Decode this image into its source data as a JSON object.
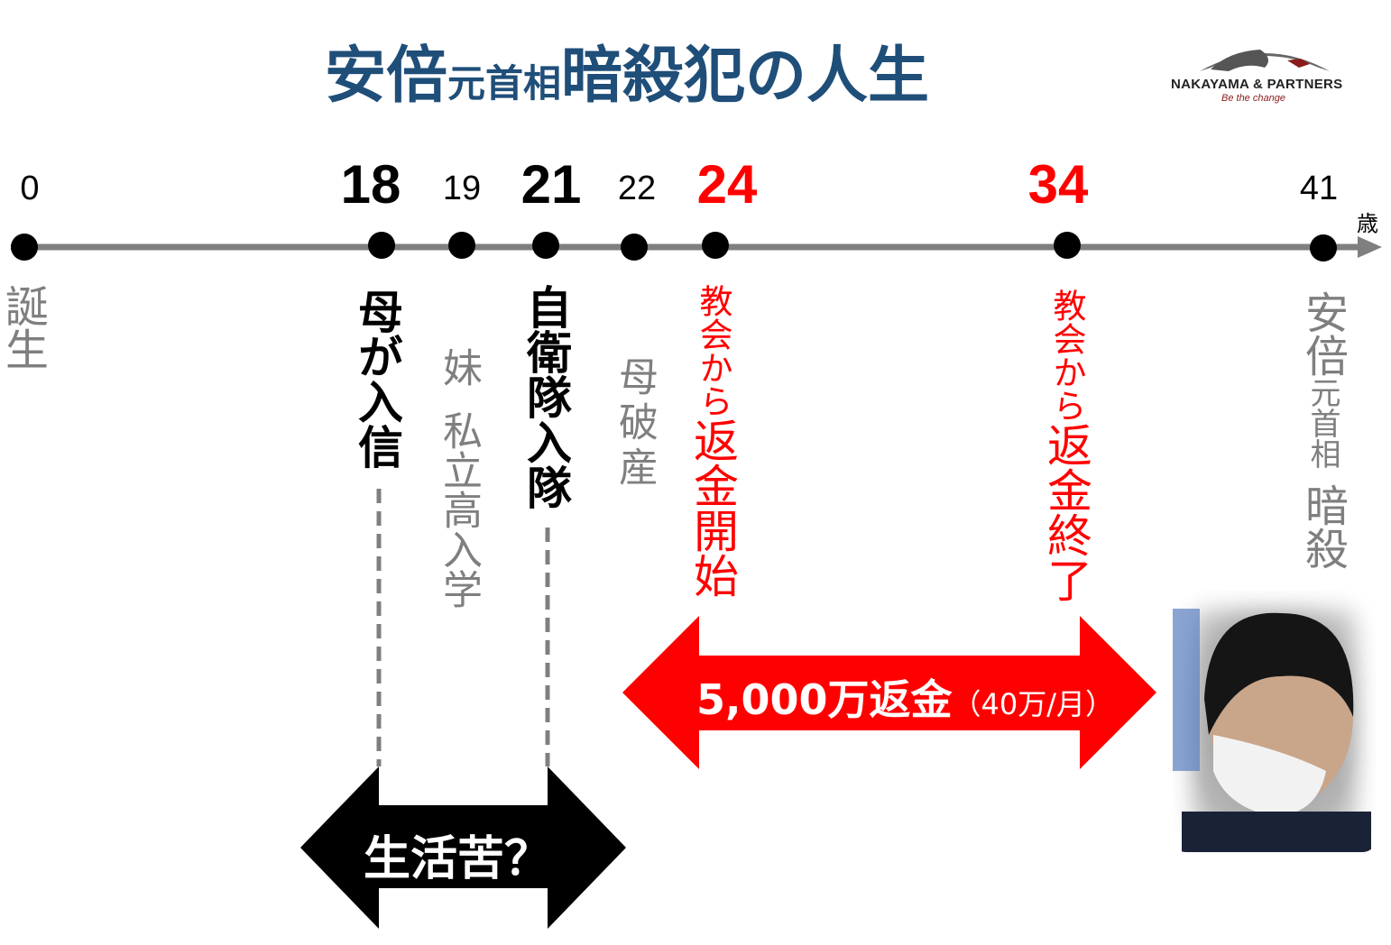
{
  "title": {
    "part1": "安倍",
    "part2": "元首相",
    "part3": "暗殺犯の人生"
  },
  "logo": {
    "name": "Nakayama & Partners",
    "tagline": "Be the change"
  },
  "timeline": {
    "unit": "歳",
    "ages": [
      "0",
      "18",
      "19",
      "21",
      "22",
      "24",
      "34",
      "41"
    ],
    "events": [
      {
        "age": "0",
        "label": "誕生"
      },
      {
        "age": "18",
        "label": "母が入信"
      },
      {
        "age": "19",
        "label_a": "妹",
        "label_b": "私立高入学"
      },
      {
        "age": "21",
        "label": "自衛隊入隊"
      },
      {
        "age": "22",
        "label": "母破産"
      },
      {
        "age": "24",
        "label_a": "教会から",
        "label_b": "返金開始"
      },
      {
        "age": "34",
        "label_a": "教会から",
        "label_b": "返金終了"
      },
      {
        "age": "41",
        "label_a": "安倍",
        "label_b": "元首相",
        "label_c": "暗殺"
      }
    ]
  },
  "arrows": {
    "hardship": "生活苦？",
    "refund_main": "5,000万返金",
    "refund_detail": "（40万/月）"
  },
  "colors": {
    "title": "#1f4e79",
    "accent": "#ff0000",
    "axis": "#7f7f7f",
    "muted": "#7f7f7f"
  }
}
